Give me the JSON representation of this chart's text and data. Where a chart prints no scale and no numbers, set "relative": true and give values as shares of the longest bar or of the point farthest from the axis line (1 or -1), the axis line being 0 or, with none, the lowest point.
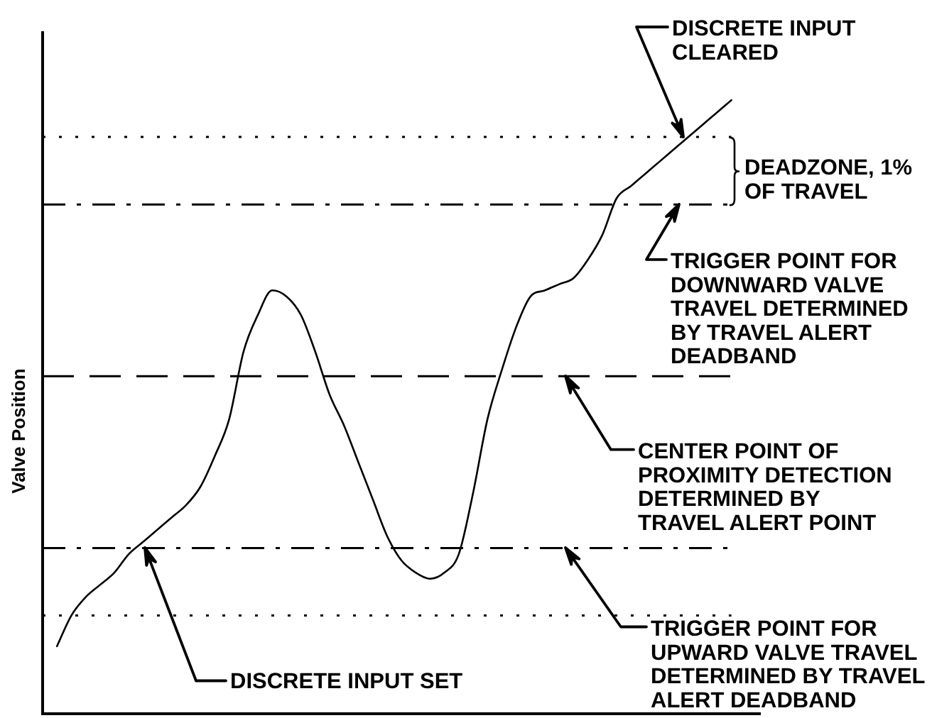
{
  "chart_data": {
    "type": "line",
    "relative": true,
    "ylabel": "Valve Position",
    "categories": [
      null,
      null,
      null,
      null,
      null,
      null,
      null,
      null,
      null,
      null,
      null,
      null,
      null,
      null,
      null,
      null,
      null,
      null,
      null,
      null,
      null,
      null,
      null,
      null,
      null,
      null,
      null,
      null,
      null,
      null,
      null,
      null,
      null,
      null,
      null,
      null,
      null,
      null,
      null,
      null,
      null,
      null,
      null,
      null,
      null,
      null,
      null,
      null,
      null,
      null,
      null
    ],
    "color": "#000000",
    "values": [
      null,
      0.11,
      0.16,
      0.19,
      0.21,
      0.23,
      0.26,
      0.28,
      0.3,
      0.32,
      0.34,
      0.37,
      0.42,
      0.48,
      0.59,
      0.65,
      0.69,
      0.68,
      0.65,
      0.59,
      0.52,
      0.47,
      0.41,
      0.35,
      0.29,
      0.25,
      0.23,
      0.22,
      0.23,
      0.26,
      0.36,
      0.48,
      0.56,
      0.63,
      0.68,
      0.69,
      0.7,
      0.71,
      0.74,
      0.78,
      0.84,
      0.86,
      0.88,
      0.9,
      0.92,
      0.94,
      0.96,
      0.98,
      1,
      null,
      null
    ],
    "ref_lines": [
      {
        "axis": "y",
        "value": 0.94,
        "line_style": "dotted"
      },
      {
        "axis": "y",
        "value": 0.83,
        "line_style": "dashdot",
        "label": "TRIGGER POINT FOR DOWNWARD VALVE TRAVEL DETERMINED BY TRAVEL ALERT DEADBAND"
      },
      {
        "axis": "y",
        "value": 0.55,
        "line_style": "dashed",
        "label": "CENTER POINT OF PROXIMITY DETECTION DETERMINED BY TRAVEL ALERT POINT"
      },
      {
        "axis": "y",
        "value": 0.27,
        "line_style": "dashdot",
        "label": "TRIGGER POINT FOR UPWARD VALVE TRAVEL DETERMINED BY TRAVEL ALERT DEADBAND"
      },
      {
        "axis": "y",
        "value": 0.16,
        "line_style": "dotted"
      }
    ],
    "annotations": [
      "DISCRETE INPUT CLEARED",
      "DEADZONE, 1% OF TRAVEL",
      "DISCRETE INPUT SET"
    ]
  }
}
